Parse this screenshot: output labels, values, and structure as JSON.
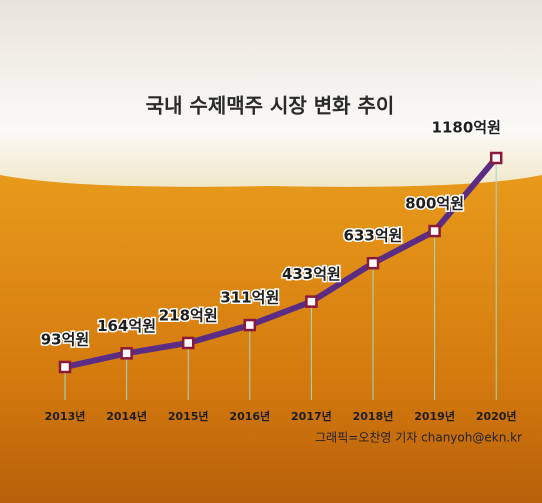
{
  "chart_data": {
    "type": "line",
    "title": "국내 수제맥주 시장 변화 추이",
    "categories": [
      "2013년",
      "2014년",
      "2015년",
      "2016년",
      "2017년",
      "2018년",
      "2019년",
      "2020년"
    ],
    "values": [
      93,
      164,
      218,
      311,
      433,
      633,
      800,
      1180
    ],
    "value_labels": [
      "93억원",
      "164억원",
      "218억원",
      "311억원",
      "433억원",
      "633억원",
      "800억원",
      "1180억원"
    ],
    "color": "#5b2c83",
    "marker_color": "#8b1a3a",
    "credit": "그래픽=오찬영 기자 chanyoh@ekn.kr"
  }
}
